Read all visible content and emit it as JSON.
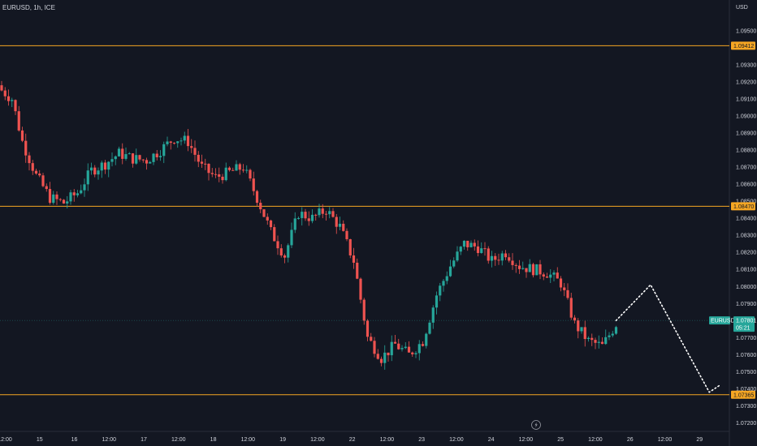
{
  "header": {
    "title": "EURUSD, 1h, ICE"
  },
  "price_scale": {
    "currency": "USD",
    "ticks": [
      "1.09500",
      "1.09300",
      "1.09200",
      "1.09100",
      "1.09000",
      "1.08900",
      "1.08800",
      "1.08700",
      "1.08600",
      "1.08500",
      "1.08400",
      "1.08300",
      "1.08200",
      "1.08100",
      "1.08000",
      "1.07900",
      "1.07700",
      "1.07600",
      "1.07500",
      "1.07400",
      "1.07300",
      "1.07200"
    ]
  },
  "time_axis": {
    "labels": [
      "12:00",
      "15",
      "16",
      "12:00",
      "17",
      "12:00",
      "18",
      "12:00",
      "19",
      "12:00",
      "22",
      "12:00",
      "23",
      "12:00",
      "24",
      "12:00",
      "25",
      "12:00",
      "26",
      "12:00",
      "29"
    ]
  },
  "levels": [
    {
      "price": 1.09412,
      "label": "1.09412",
      "color": "#f5a623"
    },
    {
      "price": 1.0847,
      "label": "1.08470",
      "color": "#f5a623"
    },
    {
      "price": 1.07365,
      "label": "1.07365",
      "color": "#f5a623"
    }
  ],
  "current_price": {
    "symbol": "EURUSD",
    "price_label": "1.07801",
    "countdown": "05:21",
    "color": "#26a69a"
  },
  "footer": {
    "flash_icon": "lightning-icon"
  },
  "colors": {
    "bull": "#26a69a",
    "bear": "#ef5350",
    "background": "#131722",
    "projection": "#ffffff"
  },
  "chart_data": {
    "type": "candlestick",
    "title": "EURUSD, 1h, ICE",
    "ylim": [
      1.0715,
      1.0968
    ],
    "y_unit": "USD",
    "close_path": [
      [
        0,
        1.0915
      ],
      [
        3,
        1.091
      ],
      [
        6,
        1.0885
      ],
      [
        10,
        1.0865
      ],
      [
        14,
        1.0852
      ],
      [
        18,
        1.0849
      ],
      [
        22,
        1.0855
      ],
      [
        26,
        1.0868
      ],
      [
        30,
        1.0872
      ],
      [
        34,
        1.0878
      ],
      [
        38,
        1.0875
      ],
      [
        42,
        1.0874
      ],
      [
        46,
        1.088
      ],
      [
        50,
        1.0887
      ],
      [
        54,
        1.0885
      ],
      [
        58,
        1.087
      ],
      [
        62,
        1.0864
      ],
      [
        66,
        1.0867
      ],
      [
        70,
        1.087
      ],
      [
        74,
        1.0852
      ],
      [
        78,
        1.0832
      ],
      [
        82,
        1.0818
      ],
      [
        86,
        1.0843
      ],
      [
        90,
        1.084
      ],
      [
        94,
        1.0845
      ],
      [
        98,
        1.0835
      ],
      [
        102,
        1.0815
      ],
      [
        106,
        1.077
      ],
      [
        110,
        1.0758
      ],
      [
        114,
        1.0766
      ],
      [
        118,
        1.076
      ],
      [
        122,
        1.0768
      ],
      [
        126,
        1.0795
      ],
      [
        130,
        1.0812
      ],
      [
        134,
        1.0825
      ],
      [
        138,
        1.0823
      ],
      [
        142,
        1.0815
      ],
      [
        146,
        1.082
      ],
      [
        150,
        1.0812
      ],
      [
        154,
        1.081
      ],
      [
        158,
        1.0808
      ],
      [
        162,
        1.0802
      ],
      [
        166,
        1.0778
      ],
      [
        170,
        1.0768
      ],
      [
        174,
        1.0765
      ],
      [
        178,
        1.0778
      ]
    ],
    "projection": [
      [
        178,
        1.078
      ],
      [
        188,
        1.0801
      ],
      [
        205,
        1.0738
      ],
      [
        208,
        1.0742
      ]
    ]
  }
}
